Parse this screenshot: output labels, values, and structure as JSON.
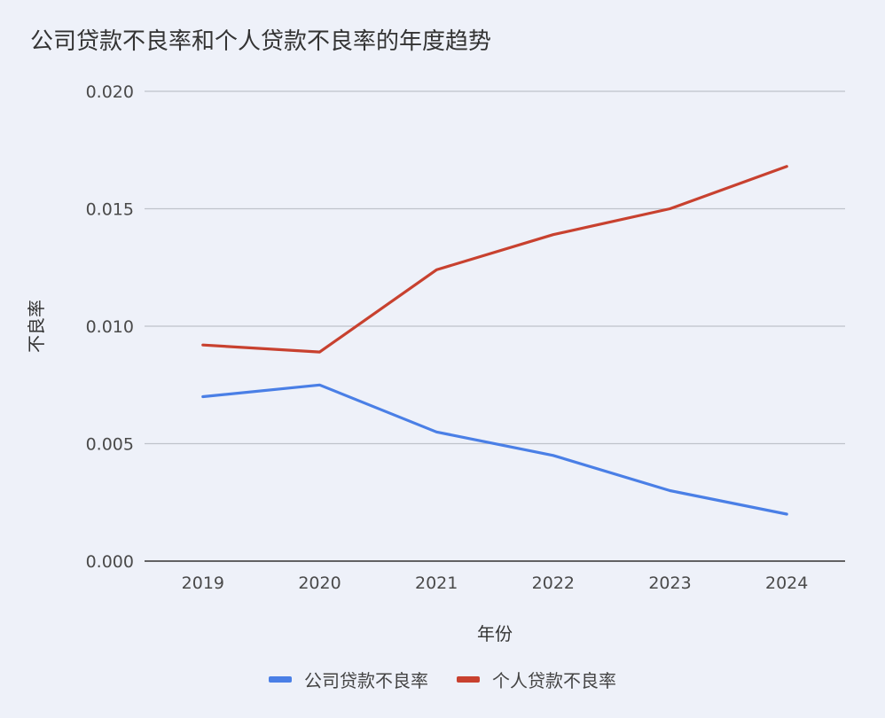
{
  "chart_data": {
    "type": "line",
    "title": "公司贷款不良率和个人贷款不良率的年度趋势",
    "xlabel": "年份",
    "ylabel": "不良率",
    "categories": [
      "2019",
      "2020",
      "2021",
      "2022",
      "2023",
      "2024"
    ],
    "ylim": [
      0,
      0.02
    ],
    "yticks": [
      "0.000",
      "0.005",
      "0.010",
      "0.015",
      "0.020"
    ],
    "ytick_values": [
      0,
      0.005,
      0.01,
      0.015,
      0.02
    ],
    "grid": true,
    "legend_position": "bottom",
    "series": [
      {
        "name": "公司贷款不良率",
        "color": "#4a7fe6",
        "values": [
          0.007,
          0.0075,
          0.0055,
          0.0045,
          0.003,
          0.002
        ]
      },
      {
        "name": "个人贷款不良率",
        "color": "#c8412f",
        "values": [
          0.0092,
          0.0089,
          0.0124,
          0.0139,
          0.015,
          0.0168
        ]
      }
    ]
  }
}
